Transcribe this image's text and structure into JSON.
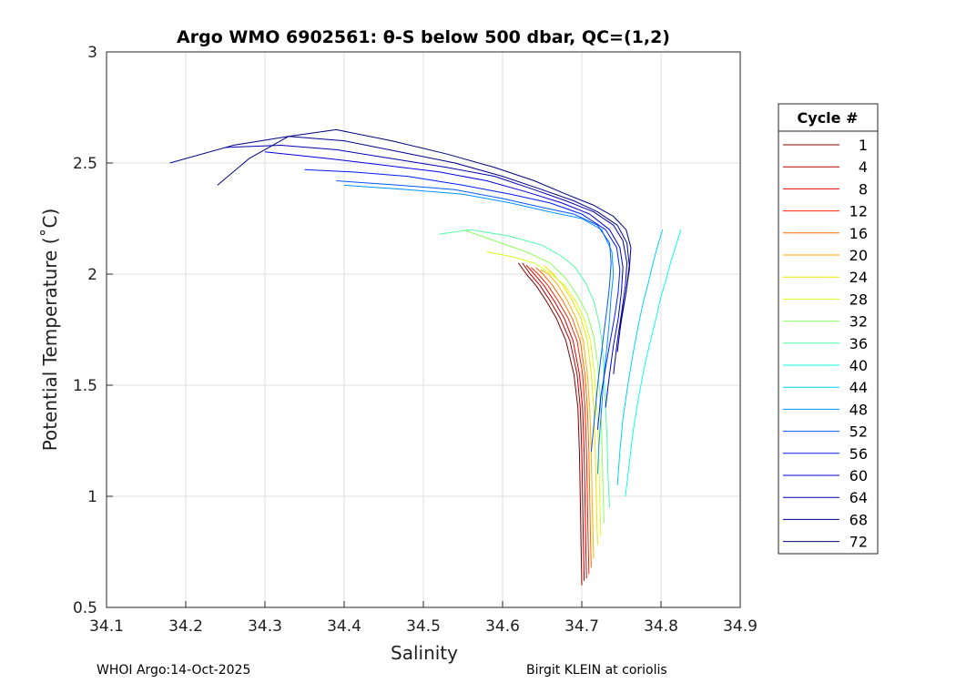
{
  "chart_data": {
    "type": "line",
    "title": "Argo WMO 6902561: θ-S below 500 dbar,  QC=(1,2)",
    "xlabel": "Salinity",
    "ylabel": "Potential Temperature (˚C)",
    "xlim": [
      34.1,
      34.9
    ],
    "ylim": [
      0.5,
      3.0
    ],
    "xticks": [
      "34.1",
      "34.2",
      "34.3",
      "34.4",
      "34.5",
      "34.6",
      "34.7",
      "34.8",
      "34.9"
    ],
    "yticks": [
      "0.5",
      "1",
      "1.5",
      "2",
      "2.5",
      "3"
    ],
    "grid": true,
    "legend": {
      "title": "Cycle #",
      "placement": "outside-right",
      "entries": [
        {
          "label": "1",
          "color": "#800000"
        },
        {
          "label": "4",
          "color": "#b30000"
        },
        {
          "label": "8",
          "color": "#e00000"
        },
        {
          "label": "12",
          "color": "#ff2400"
        },
        {
          "label": "16",
          "color": "#ff6a00"
        },
        {
          "label": "20",
          "color": "#ffae00"
        },
        {
          "label": "24",
          "color": "#f0e400"
        },
        {
          "label": "28",
          "color": "#d4ff1a"
        },
        {
          "label": "32",
          "color": "#8cff5e"
        },
        {
          "label": "36",
          "color": "#4dffa6"
        },
        {
          "label": "40",
          "color": "#10ffe8"
        },
        {
          "label": "44",
          "color": "#00d0ff"
        },
        {
          "label": "48",
          "color": "#0094ff"
        },
        {
          "label": "52",
          "color": "#0058ff"
        },
        {
          "label": "56",
          "color": "#001cff"
        },
        {
          "label": "60",
          "color": "#0000e0"
        },
        {
          "label": "64",
          "color": "#0000b3"
        },
        {
          "label": "68",
          "color": "#00008f"
        },
        {
          "label": "72",
          "color": "#000080"
        }
      ]
    },
    "series": [
      {
        "name": "1",
        "color": "#800000",
        "x": [
          34.7,
          34.699,
          34.698,
          34.697,
          34.695,
          34.69,
          34.68,
          34.668,
          34.655,
          34.642,
          34.63,
          34.62
        ],
        "y": [
          0.6,
          0.8,
          1.0,
          1.2,
          1.4,
          1.55,
          1.7,
          1.8,
          1.88,
          1.95,
          2.0,
          2.05
        ]
      },
      {
        "name": "4",
        "color": "#b30000",
        "x": [
          34.703,
          34.702,
          34.701,
          34.7,
          34.698,
          34.694,
          34.685,
          34.673,
          34.66,
          34.647,
          34.635,
          34.625
        ],
        "y": [
          0.62,
          0.8,
          1.0,
          1.2,
          1.4,
          1.55,
          1.7,
          1.8,
          1.88,
          1.95,
          2.0,
          2.05
        ]
      },
      {
        "name": "8",
        "color": "#e00000",
        "x": [
          34.706,
          34.705,
          34.704,
          34.703,
          34.701,
          34.697,
          34.689,
          34.678,
          34.665,
          34.652,
          34.64,
          34.63
        ],
        "y": [
          0.63,
          0.8,
          1.0,
          1.2,
          1.4,
          1.55,
          1.7,
          1.8,
          1.88,
          1.95,
          2.0,
          2.04
        ]
      },
      {
        "name": "12",
        "color": "#ff2400",
        "x": [
          34.709,
          34.708,
          34.707,
          34.706,
          34.704,
          34.701,
          34.694,
          34.683,
          34.67,
          34.657,
          34.645,
          34.636
        ],
        "y": [
          0.65,
          0.8,
          1.0,
          1.2,
          1.4,
          1.55,
          1.7,
          1.8,
          1.88,
          1.95,
          2.0,
          2.03
        ]
      },
      {
        "name": "16",
        "color": "#ff6a00",
        "x": [
          34.712,
          34.711,
          34.71,
          34.709,
          34.707,
          34.704,
          34.698,
          34.688,
          34.676,
          34.663,
          34.651,
          34.642
        ],
        "y": [
          0.68,
          0.8,
          1.0,
          1.2,
          1.4,
          1.55,
          1.7,
          1.8,
          1.88,
          1.95,
          2.0,
          2.03
        ]
      },
      {
        "name": "20",
        "color": "#ffae00",
        "x": [
          34.715,
          34.714,
          34.713,
          34.712,
          34.71,
          34.707,
          34.702,
          34.693,
          34.682,
          34.67,
          34.658,
          34.648
        ],
        "y": [
          0.72,
          0.85,
          1.0,
          1.2,
          1.4,
          1.55,
          1.7,
          1.8,
          1.88,
          1.95,
          2.0,
          2.02
        ]
      },
      {
        "name": "24",
        "color": "#f0e400",
        "x": [
          34.72,
          34.719,
          34.718,
          34.717,
          34.715,
          34.712,
          34.707,
          34.699,
          34.688,
          34.676,
          34.664,
          34.652
        ],
        "y": [
          0.78,
          0.9,
          1.05,
          1.2,
          1.4,
          1.55,
          1.7,
          1.8,
          1.88,
          1.95,
          2.0,
          2.04
        ]
      },
      {
        "name": "28",
        "color": "#d4ff1a",
        "x": [
          34.724,
          34.723,
          34.722,
          34.721,
          34.719,
          34.716,
          34.711,
          34.703,
          34.692,
          34.678,
          34.662,
          34.64,
          34.61,
          34.58
        ],
        "y": [
          0.82,
          0.95,
          1.1,
          1.25,
          1.4,
          1.55,
          1.7,
          1.8,
          1.88,
          1.95,
          2.0,
          2.05,
          2.08,
          2.1
        ]
      },
      {
        "name": "32",
        "color": "#8cff5e",
        "x": [
          34.728,
          34.727,
          34.726,
          34.725,
          34.723,
          34.72,
          34.715,
          34.707,
          34.695,
          34.68,
          34.66,
          34.63,
          34.59,
          34.55
        ],
        "y": [
          0.88,
          1.0,
          1.15,
          1.3,
          1.45,
          1.6,
          1.72,
          1.82,
          1.9,
          1.98,
          2.05,
          2.1,
          2.15,
          2.2
        ]
      },
      {
        "name": "36",
        "color": "#4dffa6",
        "x": [
          34.735,
          34.733,
          34.732,
          34.73,
          34.728,
          34.726,
          34.722,
          34.715,
          34.705,
          34.692,
          34.675,
          34.65,
          34.61,
          34.56,
          34.52
        ],
        "y": [
          0.95,
          1.1,
          1.25,
          1.4,
          1.55,
          1.68,
          1.78,
          1.88,
          1.96,
          2.03,
          2.08,
          2.13,
          2.17,
          2.2,
          2.18
        ]
      },
      {
        "name": "40",
        "color": "#10ffe8",
        "x": [
          34.755,
          34.76,
          34.765,
          34.772,
          34.78,
          34.788,
          34.795,
          34.8,
          34.806,
          34.812,
          34.818,
          34.825
        ],
        "y": [
          1.0,
          1.15,
          1.3,
          1.45,
          1.6,
          1.72,
          1.82,
          1.9,
          1.97,
          2.05,
          2.12,
          2.2
        ]
      },
      {
        "name": "44",
        "color": "#00d0ff",
        "x": [
          34.745,
          34.748,
          34.752,
          34.758,
          34.765,
          34.772,
          34.778,
          34.784,
          34.79,
          34.796,
          34.802
        ],
        "y": [
          1.05,
          1.2,
          1.35,
          1.5,
          1.65,
          1.78,
          1.88,
          1.96,
          2.05,
          2.13,
          2.2
        ]
      },
      {
        "name": "48",
        "color": "#0094ff",
        "x": [
          34.72,
          34.722,
          34.725,
          34.728,
          34.732,
          34.735,
          34.737,
          34.74,
          34.738,
          34.725,
          34.7,
          34.66,
          34.61,
          34.55,
          34.48,
          34.4
        ],
        "y": [
          1.1,
          1.25,
          1.4,
          1.55,
          1.68,
          1.8,
          1.9,
          2.0,
          2.1,
          2.2,
          2.25,
          2.28,
          2.32,
          2.36,
          2.38,
          2.4
        ]
      },
      {
        "name": "52",
        "color": "#0058ff",
        "x": [
          34.712,
          34.716,
          34.72,
          34.724,
          34.728,
          34.732,
          34.735,
          34.737,
          34.735,
          34.72,
          34.69,
          34.65,
          34.6,
          34.54,
          34.47,
          34.39
        ],
        "y": [
          1.2,
          1.35,
          1.5,
          1.62,
          1.74,
          1.85,
          1.95,
          2.05,
          2.14,
          2.22,
          2.27,
          2.3,
          2.34,
          2.38,
          2.4,
          2.42
        ]
      },
      {
        "name": "56",
        "color": "#001cff",
        "x": [
          34.72,
          34.724,
          34.73,
          34.736,
          34.742,
          34.746,
          34.748,
          34.744,
          34.73,
          34.7,
          34.66,
          34.61,
          34.55,
          34.48,
          34.41,
          34.35
        ],
        "y": [
          1.3,
          1.45,
          1.58,
          1.7,
          1.82,
          1.92,
          2.02,
          2.12,
          2.2,
          2.27,
          2.32,
          2.36,
          2.4,
          2.44,
          2.46,
          2.47
        ]
      },
      {
        "name": "60",
        "color": "#0000e0",
        "x": [
          34.73,
          34.735,
          34.74,
          34.746,
          34.75,
          34.752,
          34.748,
          34.735,
          34.71,
          34.675,
          34.63,
          34.58,
          34.52,
          34.45,
          34.38,
          34.3
        ],
        "y": [
          1.4,
          1.55,
          1.68,
          1.8,
          1.92,
          2.03,
          2.12,
          2.2,
          2.27,
          2.32,
          2.37,
          2.42,
          2.46,
          2.49,
          2.52,
          2.55
        ]
      },
      {
        "name": "64",
        "color": "#0000b3",
        "x": [
          34.74,
          34.745,
          34.75,
          34.755,
          34.757,
          34.752,
          34.74,
          34.715,
          34.68,
          34.64,
          34.59,
          34.53,
          34.46,
          34.39,
          34.32,
          34.25
        ],
        "y": [
          1.55,
          1.7,
          1.82,
          1.95,
          2.05,
          2.15,
          2.22,
          2.28,
          2.33,
          2.38,
          2.44,
          2.48,
          2.52,
          2.56,
          2.58,
          2.57
        ]
      },
      {
        "name": "68",
        "color": "#00008f",
        "x": [
          34.745,
          34.75,
          34.756,
          34.76,
          34.757,
          34.745,
          34.72,
          34.69,
          34.65,
          34.6,
          34.54,
          34.47,
          34.4,
          34.33,
          34.26,
          34.18
        ],
        "y": [
          1.65,
          1.8,
          1.92,
          2.04,
          2.14,
          2.22,
          2.28,
          2.33,
          2.38,
          2.44,
          2.5,
          2.55,
          2.6,
          2.62,
          2.58,
          2.5
        ]
      },
      {
        "name": "72",
        "color": "#000080",
        "x": [
          34.748,
          34.755,
          34.76,
          34.762,
          34.756,
          34.74,
          34.715,
          34.68,
          34.64,
          34.59,
          34.53,
          34.46,
          34.39,
          34.33,
          34.28,
          34.24
        ],
        "y": [
          1.75,
          1.9,
          2.02,
          2.12,
          2.2,
          2.26,
          2.31,
          2.36,
          2.42,
          2.48,
          2.54,
          2.6,
          2.65,
          2.62,
          2.52,
          2.4
        ]
      }
    ]
  },
  "footer": {
    "left": "WHOI Argo:14-Oct-2025",
    "right": "Birgit KLEIN at coriolis"
  }
}
